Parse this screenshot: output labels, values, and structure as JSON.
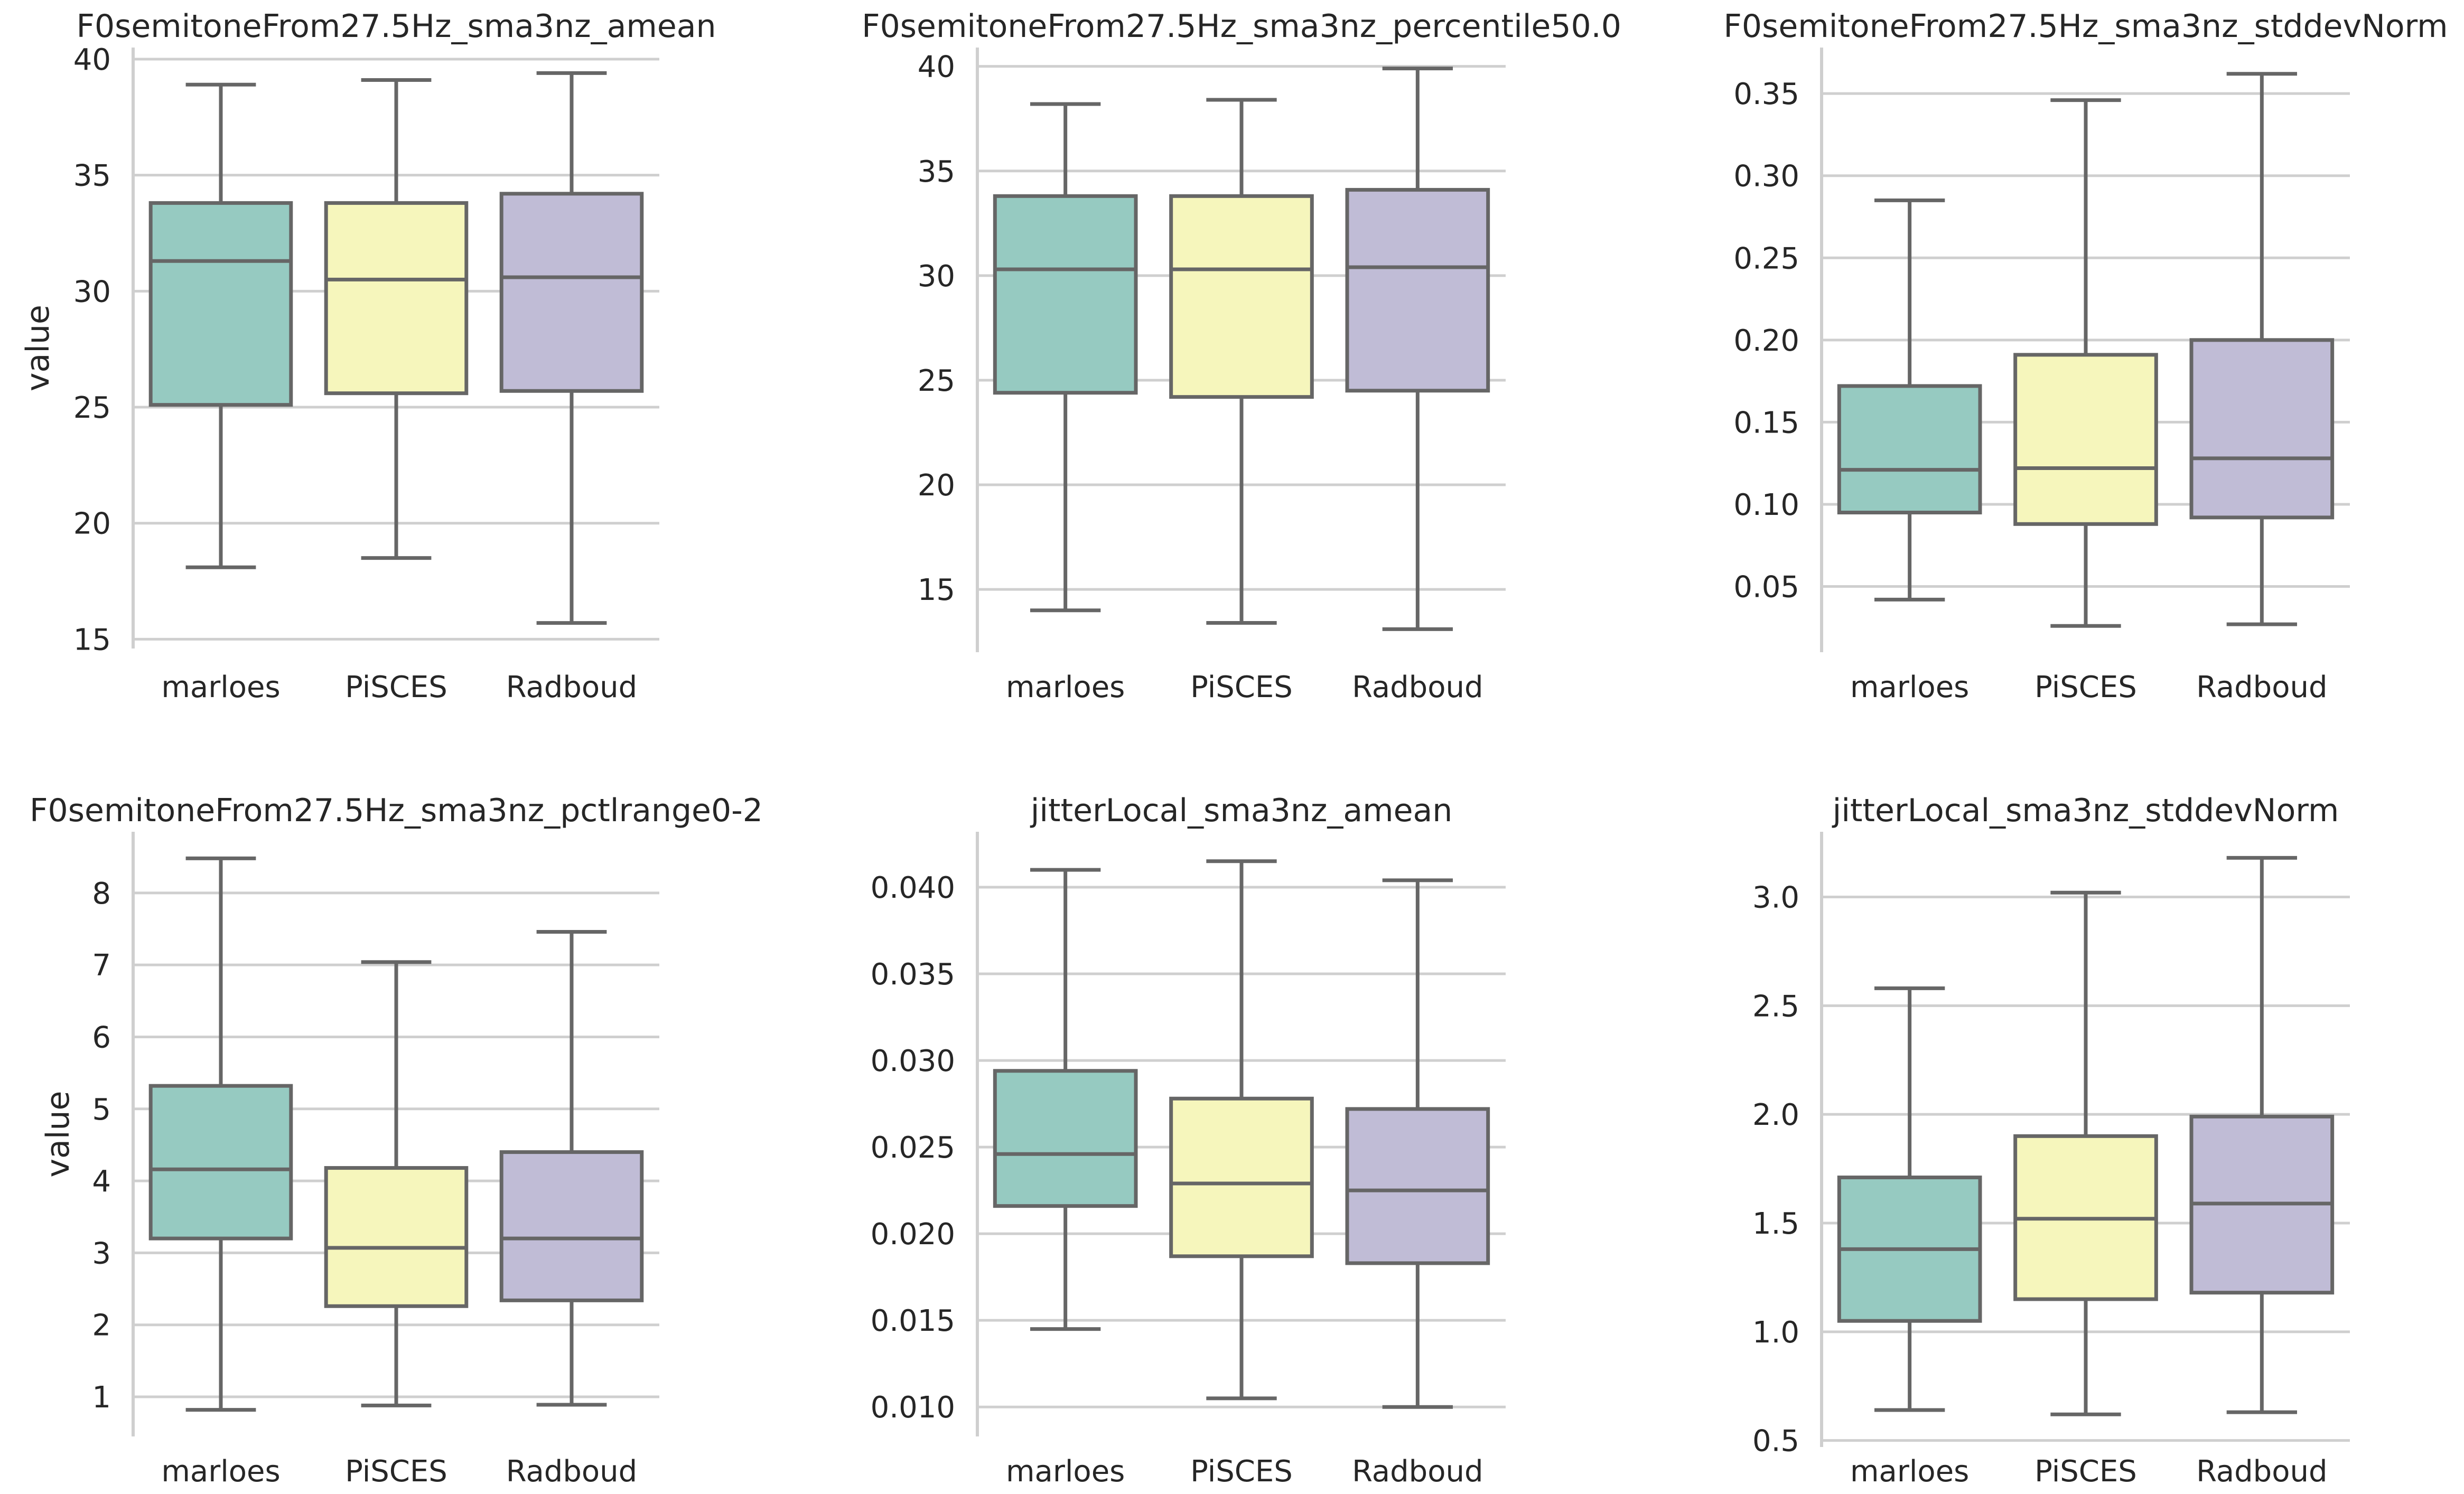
{
  "colors": {
    "marloes": "#96cac1",
    "PiSCES": "#f6f6bc",
    "Radboud": "#c0bcd6",
    "line": "#666666",
    "grid": "#cfcfcf",
    "text": "#262626"
  },
  "chart_data": [
    {
      "type": "box",
      "title": "F0semitoneFrom27.5Hz_sma3nz_amean",
      "ylabel": "value",
      "categories": [
        "marloes",
        "PiSCES",
        "Radboud"
      ],
      "ylim": [
        14.6,
        40.5
      ],
      "yticks": [
        15,
        20,
        25,
        30,
        35,
        40
      ],
      "ytick_labels": [
        "15",
        "20",
        "25",
        "30",
        "35",
        "40"
      ],
      "grid": true,
      "boxes": [
        {
          "category": "marloes",
          "whisker_low": 18.1,
          "q1": 25.1,
          "median": 31.3,
          "q3": 33.8,
          "whisker_high": 38.9
        },
        {
          "category": "PiSCES",
          "whisker_low": 18.5,
          "q1": 25.6,
          "median": 30.5,
          "q3": 33.8,
          "whisker_high": 39.1
        },
        {
          "category": "Radboud",
          "whisker_low": 15.7,
          "q1": 25.7,
          "median": 30.6,
          "q3": 34.2,
          "whisker_high": 39.4
        }
      ]
    },
    {
      "type": "box",
      "title": "F0semitoneFrom27.5Hz_sma3nz_percentile50.0",
      "ylabel": "",
      "categories": [
        "marloes",
        "PiSCES",
        "Radboud"
      ],
      "ylim": [
        12.0,
        40.9
      ],
      "yticks": [
        15,
        20,
        25,
        30,
        35,
        40
      ],
      "ytick_labels": [
        "15",
        "20",
        "25",
        "30",
        "35",
        "40"
      ],
      "grid": true,
      "boxes": [
        {
          "category": "marloes",
          "whisker_low": 14.0,
          "q1": 24.4,
          "median": 30.3,
          "q3": 33.8,
          "whisker_high": 38.2
        },
        {
          "category": "PiSCES",
          "whisker_low": 13.4,
          "q1": 24.2,
          "median": 30.3,
          "q3": 33.8,
          "whisker_high": 38.4
        },
        {
          "category": "Radboud",
          "whisker_low": 13.1,
          "q1": 24.5,
          "median": 30.4,
          "q3": 34.1,
          "whisker_high": 39.9
        }
      ]
    },
    {
      "type": "box",
      "title": "F0semitoneFrom27.5Hz_sma3nz_stddevNorm",
      "ylabel": "",
      "categories": [
        "marloes",
        "PiSCES",
        "Radboud"
      ],
      "ylim": [
        0.01,
        0.378
      ],
      "yticks": [
        0.05,
        0.1,
        0.15,
        0.2,
        0.25,
        0.3,
        0.35
      ],
      "ytick_labels": [
        "0.05",
        "0.10",
        "0.15",
        "0.20",
        "0.25",
        "0.30",
        "0.35"
      ],
      "grid": true,
      "boxes": [
        {
          "category": "marloes",
          "whisker_low": 0.042,
          "q1": 0.095,
          "median": 0.121,
          "q3": 0.172,
          "whisker_high": 0.285
        },
        {
          "category": "PiSCES",
          "whisker_low": 0.026,
          "q1": 0.088,
          "median": 0.122,
          "q3": 0.191,
          "whisker_high": 0.346
        },
        {
          "category": "Radboud",
          "whisker_low": 0.027,
          "q1": 0.092,
          "median": 0.128,
          "q3": 0.2,
          "whisker_high": 0.362
        }
      ]
    },
    {
      "type": "box",
      "title": "F0semitoneFrom27.5Hz_sma3nz_pctlrange0-2",
      "ylabel": "value",
      "categories": [
        "marloes",
        "PiSCES",
        "Radboud"
      ],
      "ylim": [
        0.45,
        8.85
      ],
      "yticks": [
        1,
        2,
        3,
        4,
        5,
        6,
        7,
        8
      ],
      "ytick_labels": [
        "1",
        "2",
        "3",
        "4",
        "5",
        "6",
        "7",
        "8"
      ],
      "grid": true,
      "boxes": [
        {
          "category": "marloes",
          "whisker_low": 0.82,
          "q1": 3.2,
          "median": 4.16,
          "q3": 5.32,
          "whisker_high": 8.48
        },
        {
          "category": "PiSCES",
          "whisker_low": 0.88,
          "q1": 2.26,
          "median": 3.07,
          "q3": 4.18,
          "whisker_high": 7.04
        },
        {
          "category": "Radboud",
          "whisker_low": 0.89,
          "q1": 2.34,
          "median": 3.2,
          "q3": 4.4,
          "whisker_high": 7.46
        }
      ]
    },
    {
      "type": "box",
      "title": "jitterLocal_sma3nz_amean",
      "ylabel": "",
      "categories": [
        "marloes",
        "PiSCES",
        "Radboud"
      ],
      "ylim": [
        0.0083,
        0.0432
      ],
      "yticks": [
        0.01,
        0.015,
        0.02,
        0.025,
        0.03,
        0.035,
        0.04
      ],
      "ytick_labels": [
        "0.010",
        "0.015",
        "0.020",
        "0.025",
        "0.030",
        "0.035",
        "0.040"
      ],
      "grid": true,
      "boxes": [
        {
          "category": "marloes",
          "whisker_low": 0.0145,
          "q1": 0.0216,
          "median": 0.0246,
          "q3": 0.0294,
          "whisker_high": 0.041
        },
        {
          "category": "PiSCES",
          "whisker_low": 0.0105,
          "q1": 0.0187,
          "median": 0.0229,
          "q3": 0.0278,
          "whisker_high": 0.0415
        },
        {
          "category": "Radboud",
          "whisker_low": 0.01,
          "q1": 0.0183,
          "median": 0.0225,
          "q3": 0.0272,
          "whisker_high": 0.0404
        }
      ]
    },
    {
      "type": "box",
      "title": "jitterLocal_sma3nz_stddevNorm",
      "ylabel": "",
      "categories": [
        "marloes",
        "PiSCES",
        "Radboud"
      ],
      "ylim": [
        0.47,
        3.3
      ],
      "yticks": [
        0.5,
        1.0,
        1.5,
        2.0,
        2.5,
        3.0
      ],
      "ytick_labels": [
        "0.5",
        "1.0",
        "1.5",
        "2.0",
        "2.5",
        "3.0"
      ],
      "grid": true,
      "boxes": [
        {
          "category": "marloes",
          "whisker_low": 0.64,
          "q1": 1.05,
          "median": 1.38,
          "q3": 1.71,
          "whisker_high": 2.58
        },
        {
          "category": "PiSCES",
          "whisker_low": 0.62,
          "q1": 1.15,
          "median": 1.52,
          "q3": 1.9,
          "whisker_high": 3.02
        },
        {
          "category": "Radboud",
          "whisker_low": 0.63,
          "q1": 1.18,
          "median": 1.59,
          "q3": 1.99,
          "whisker_high": 3.18
        }
      ]
    }
  ]
}
